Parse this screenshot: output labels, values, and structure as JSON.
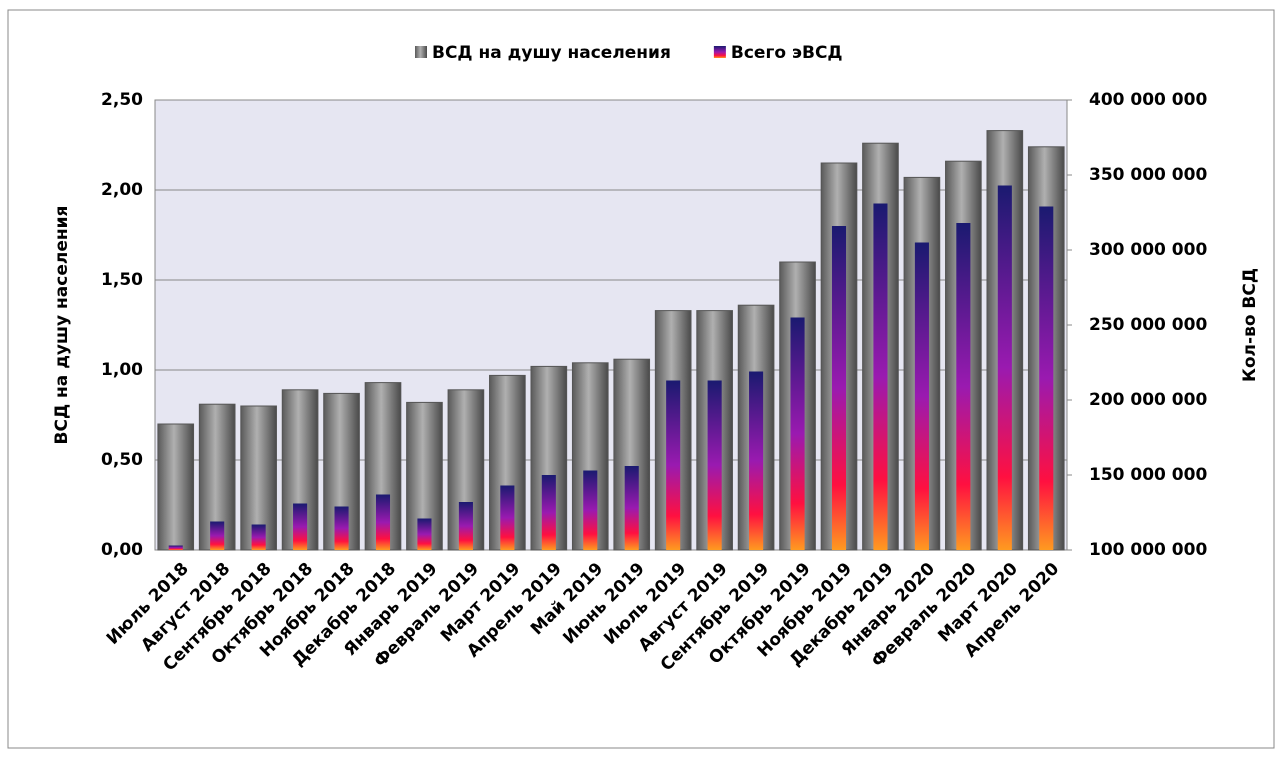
{
  "chart_data": {
    "type": "bar",
    "y_label": "ВСД на душу населения",
    "y2_label": "Кол-во ВСД",
    "categories": [
      "Июль 2018",
      "Август 2018",
      "Сентябрь 2018",
      "Октябрь 2018",
      "Ноябрь 2018",
      "Декабрь 2018",
      "Январь 2019",
      "Февраль 2019",
      "Март 2019",
      "Апрель 2019",
      "Май 2019",
      "Июнь 2019",
      "Июль 2019",
      "Август 2019",
      "Сентябрь 2019",
      "Октябрь 2019",
      "Ноябрь 2019",
      "Декабрь 2019",
      "Январь 2020",
      "Февраль 2020",
      "Март 2020",
      "Апрель 2020"
    ],
    "series": [
      {
        "name": "ВСД на душу населения",
        "color": "#8a8a8a",
        "values": [
          0.7,
          0.81,
          0.8,
          0.89,
          0.87,
          0.93,
          0.82,
          0.89,
          0.97,
          1.02,
          1.04,
          1.06,
          1.33,
          1.33,
          1.36,
          1.6,
          2.15,
          2.26,
          2.07,
          2.16,
          2.33,
          2.24
        ]
      },
      {
        "name": "Всего эВСД",
        "color": "#1a1a70",
        "axis": "y2",
        "values": [
          103000000,
          119000000,
          117000000,
          131000000,
          129000000,
          137000000,
          121000000,
          132000000,
          143000000,
          150000000,
          153000000,
          156000000,
          213000000,
          213000000,
          219000000,
          255000000,
          316000000,
          331000000,
          305000000,
          318000000,
          343000000,
          329000000
        ]
      }
    ],
    "ylim": [
      0,
      2.5
    ],
    "yticks": [
      {
        "value": 0,
        "label": "0,00"
      },
      {
        "value": 0.5,
        "label": "0,50"
      },
      {
        "value": 1,
        "label": "1,00"
      },
      {
        "value": 1.5,
        "label": "1,50"
      },
      {
        "value": 2,
        "label": "2,00"
      },
      {
        "value": 2.5,
        "label": "2,50"
      }
    ],
    "y2lim": [
      100000000,
      400000000
    ],
    "y2ticks": [
      {
        "value": 100000000,
        "label": "100 000 000"
      },
      {
        "value": 150000000,
        "label": "150 000 000"
      },
      {
        "value": 200000000,
        "label": "200 000 000"
      },
      {
        "value": 250000000,
        "label": "250 000 000"
      },
      {
        "value": 300000000,
        "label": "300 000 000"
      },
      {
        "value": 350000000,
        "label": "350 000 000"
      },
      {
        "value": 400000000,
        "label": "400 000 000"
      }
    ],
    "grid": true,
    "legend": "top"
  }
}
